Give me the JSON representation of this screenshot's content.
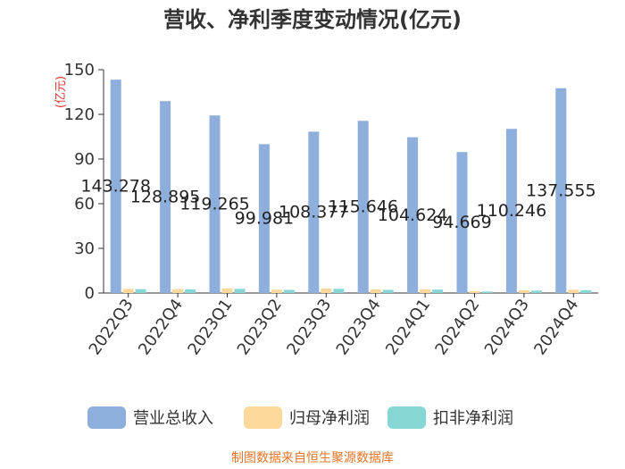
{
  "source_text": "制图数据来自恒生聚源数据库",
  "chart_data": {
    "type": "bar",
    "title": "营收、净利季度变动情况(亿元)",
    "unit_label": "(亿元)",
    "categories": [
      "2022Q3",
      "2022Q4",
      "2023Q1",
      "2023Q2",
      "2023Q3",
      "2023Q4",
      "2024Q1",
      "2024Q2",
      "2024Q3",
      "2024Q4"
    ],
    "ylim": [
      0,
      150
    ],
    "yticks": [
      0,
      30,
      60,
      90,
      120,
      150
    ],
    "grid": false,
    "legend_position": "bottom",
    "series": [
      {
        "name": "营业总收入",
        "color": "#8eaedb",
        "label_values": true,
        "values": [
          143.278,
          128.895,
          119.265,
          99.981,
          108.377,
          115.646,
          104.624,
          94.669,
          110.246,
          137.555
        ]
      },
      {
        "name": "归母净利润",
        "color": "#fcd99a",
        "label_values": false,
        "values": [
          2.8,
          2.6,
          3.1,
          2.3,
          3.0,
          2.4,
          2.5,
          1.2,
          1.8,
          2.2
        ]
      },
      {
        "name": "扣非净利润",
        "color": "#86d6d6",
        "label_values": false,
        "values": [
          2.6,
          2.4,
          2.8,
          2.1,
          2.8,
          2.1,
          2.3,
          1.0,
          1.6,
          1.9
        ]
      }
    ]
  }
}
